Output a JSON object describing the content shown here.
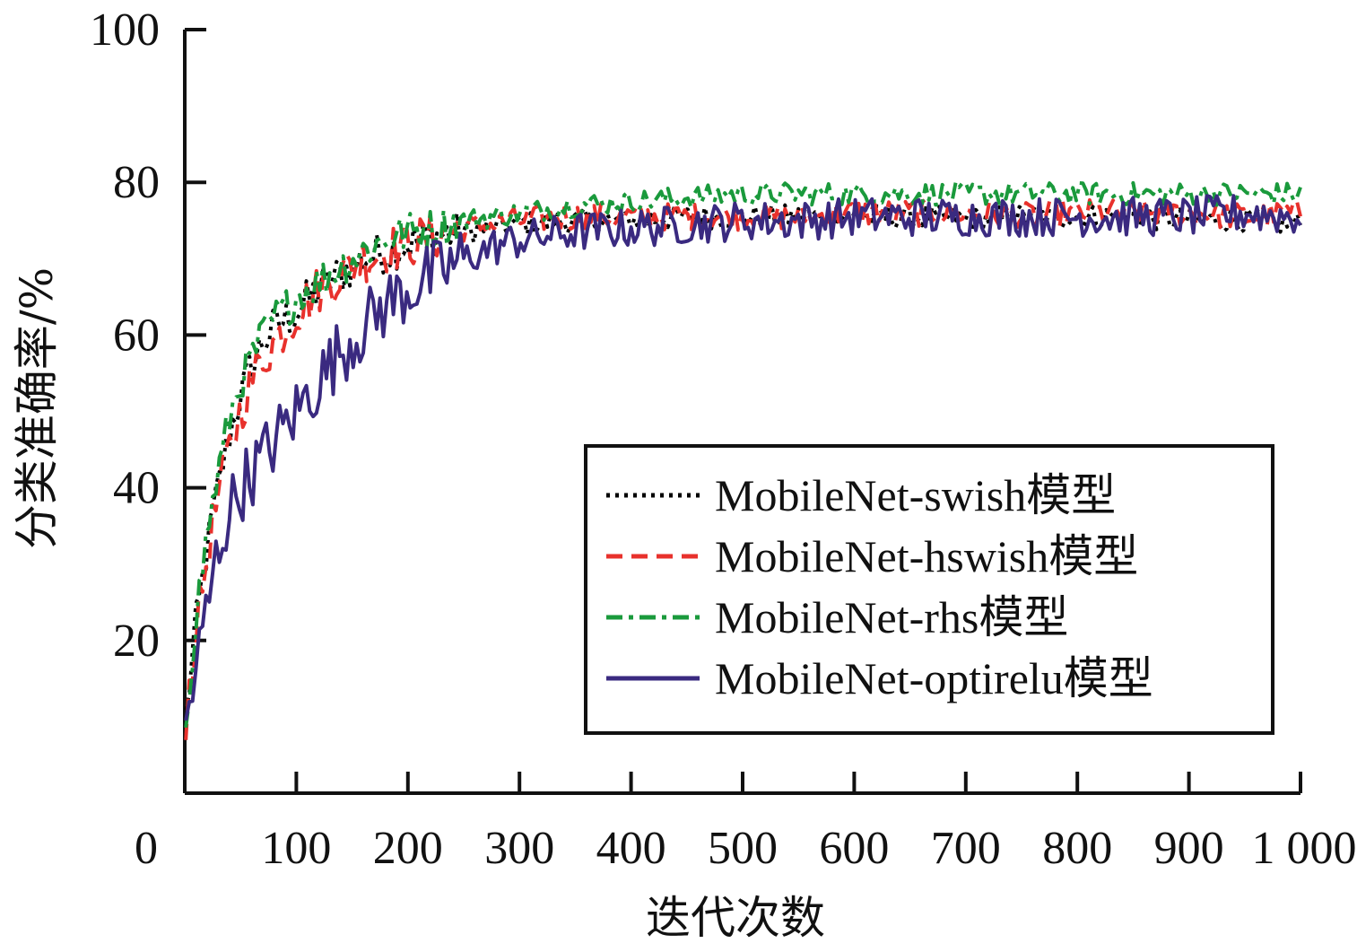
{
  "chart_data": {
    "type": "line",
    "title": "",
    "xlabel": "迭代次数",
    "ylabel": "分类准确率/%",
    "xlim": [
      0,
      1000
    ],
    "ylim": [
      0,
      100
    ],
    "x_ticks": [
      0,
      100,
      200,
      300,
      400,
      500,
      600,
      700,
      800,
      900,
      1000
    ],
    "x_tick_labels": [
      "0",
      "100",
      "200",
      "300",
      "400",
      "500",
      "600",
      "700",
      "800",
      "900",
      "1 000"
    ],
    "y_ticks": [
      20,
      40,
      60,
      80,
      100
    ],
    "y_tick_labels": [
      "20",
      "40",
      "60",
      "80",
      "100"
    ],
    "grid": false,
    "legend_position": "lower-right",
    "x": [
      1,
      10,
      20,
      30,
      40,
      50,
      60,
      70,
      80,
      90,
      100,
      120,
      140,
      160,
      180,
      200,
      225,
      250,
      275,
      300,
      350,
      400,
      450,
      500,
      550,
      600,
      650,
      700,
      750,
      800,
      850,
      900,
      950,
      1000
    ],
    "series": [
      {
        "name": "MobileNet-swish模型",
        "color": "#000000",
        "dash": "dotted",
        "values": [
          10,
          22,
          32,
          40,
          47,
          52,
          56,
          59,
          61,
          62,
          63,
          66,
          68,
          70,
          71,
          72,
          73,
          73.5,
          74,
          74.5,
          75,
          75,
          75.5,
          75.5,
          75.5,
          75.5,
          75.5,
          75,
          75.5,
          75.5,
          75.5,
          75,
          75,
          74.5
        ]
      },
      {
        "name": "MobileNet-hswish模型",
        "color": "#e8312c",
        "dash": "dashed",
        "values": [
          10,
          21,
          31,
          39,
          45,
          50,
          54,
          57,
          59,
          61,
          63,
          66,
          68,
          70,
          71,
          72,
          73,
          74,
          74.5,
          75,
          75.5,
          75.5,
          75.5,
          75.5,
          75.5,
          76,
          76,
          76,
          75.5,
          76,
          76,
          76,
          75.5,
          76
        ]
      },
      {
        "name": "MobileNet-rhs模型",
        "color": "#1a9a3c",
        "dash": "dashdot",
        "values": [
          10,
          23,
          34,
          42,
          49,
          54,
          57,
          60,
          62,
          63.5,
          65,
          67,
          69,
          71,
          72.5,
          73.5,
          74,
          75,
          75.5,
          76,
          77,
          77.5,
          78,
          78.5,
          78.5,
          78.5,
          78.5,
          78.5,
          78.5,
          78.5,
          78.5,
          78.5,
          78.5,
          78.5
        ]
      },
      {
        "name": "MobileNet-optirelu模型",
        "color": "#3a2a80",
        "dash": "solid",
        "values": [
          9,
          16,
          24,
          32,
          37,
          40,
          42,
          44,
          46,
          48,
          50,
          54,
          58,
          61,
          64,
          66,
          68,
          70,
          71.5,
          72.5,
          73.5,
          74,
          74.5,
          75,
          75,
          75.5,
          75.5,
          75.5,
          75.5,
          75.5,
          75.5,
          75.5,
          76,
          75.5
        ]
      }
    ]
  }
}
